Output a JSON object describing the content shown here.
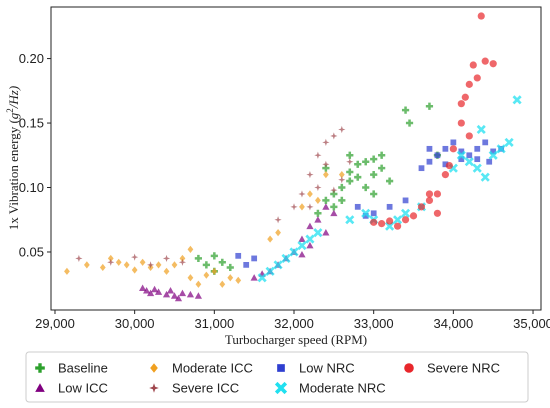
{
  "chart_data": {
    "type": "scatter",
    "title": "",
    "xlabel": "Turbocharger speed (RPM)",
    "ylabel_main": "1x Vibration energy (",
    "ylabel_unit": "g",
    "ylabel_sup": "2",
    "ylabel_tail": "/Hz)",
    "xlim": [
      28950,
      35100
    ],
    "ylim": [
      0.005,
      0.24
    ],
    "xticks": [
      29000,
      30000,
      31000,
      32000,
      33000,
      34000,
      35000
    ],
    "xtick_labels": [
      "29,000",
      "30,000",
      "31,000",
      "32,000",
      "33,000",
      "34,000",
      "35,000"
    ],
    "yticks": [
      0.05,
      0.1,
      0.15,
      0.2
    ],
    "ytick_labels": [
      "0.05",
      "0.10",
      "0.15",
      "0.20"
    ],
    "grid": false,
    "legend_position": "bottom",
    "series": [
      {
        "name": "Baseline",
        "marker": "plus",
        "color": "#2ca02c",
        "points": [
          [
            30800,
            0.045
          ],
          [
            30900,
            0.04
          ],
          [
            31000,
            0.047
          ],
          [
            31100,
            0.042
          ],
          [
            31200,
            0.038
          ],
          [
            31000,
            0.035
          ],
          [
            32300,
            0.08
          ],
          [
            32400,
            0.09
          ],
          [
            32500,
            0.095
          ],
          [
            32500,
            0.085
          ],
          [
            32600,
            0.1
          ],
          [
            32700,
            0.105
          ],
          [
            32700,
            0.112
          ],
          [
            32800,
            0.118
          ],
          [
            32800,
            0.108
          ],
          [
            32900,
            0.12
          ],
          [
            32900,
            0.1
          ],
          [
            33000,
            0.122
          ],
          [
            33000,
            0.11
          ],
          [
            33100,
            0.115
          ],
          [
            33200,
            0.105
          ],
          [
            32600,
            0.09
          ],
          [
            33400,
            0.16
          ],
          [
            33450,
            0.15
          ],
          [
            33700,
            0.163
          ],
          [
            33800,
            0.125
          ],
          [
            32400,
            0.115
          ],
          [
            32700,
            0.125
          ],
          [
            33000,
            0.095
          ],
          [
            33100,
            0.125
          ]
        ]
      },
      {
        "name": "Low ICC",
        "marker": "triangle",
        "color": "#800080",
        "points": [
          [
            30100,
            0.022
          ],
          [
            30150,
            0.02
          ],
          [
            30200,
            0.018
          ],
          [
            30250,
            0.021
          ],
          [
            30300,
            0.019
          ],
          [
            30400,
            0.017
          ],
          [
            30500,
            0.016
          ],
          [
            30600,
            0.018
          ],
          [
            30700,
            0.017
          ],
          [
            30800,
            0.016
          ],
          [
            30450,
            0.02
          ],
          [
            30550,
            0.014
          ],
          [
            31500,
            0.03
          ],
          [
            31600,
            0.033
          ],
          [
            31700,
            0.035
          ],
          [
            31800,
            0.04
          ],
          [
            31900,
            0.045
          ],
          [
            32000,
            0.05
          ],
          [
            32100,
            0.06
          ],
          [
            32200,
            0.07
          ],
          [
            32300,
            0.075
          ],
          [
            32400,
            0.065
          ],
          [
            32500,
            0.08
          ],
          [
            32200,
            0.055
          ],
          [
            32400,
            0.085
          ],
          [
            32100,
            0.048
          ]
        ]
      },
      {
        "name": "Moderate ICC",
        "marker": "diamond",
        "color": "#f0a020",
        "points": [
          [
            29150,
            0.035
          ],
          [
            29400,
            0.04
          ],
          [
            29600,
            0.038
          ],
          [
            29700,
            0.045
          ],
          [
            29800,
            0.042
          ],
          [
            29900,
            0.04
          ],
          [
            30000,
            0.036
          ],
          [
            30100,
            0.042
          ],
          [
            30200,
            0.038
          ],
          [
            30300,
            0.04
          ],
          [
            30400,
            0.035
          ],
          [
            30500,
            0.04
          ],
          [
            30600,
            0.045
          ],
          [
            30700,
            0.03
          ],
          [
            30800,
            0.025
          ],
          [
            30900,
            0.032
          ],
          [
            31000,
            0.035
          ],
          [
            31100,
            0.025
          ],
          [
            31200,
            0.03
          ],
          [
            31300,
            0.028
          ],
          [
            31800,
            0.065
          ],
          [
            31700,
            0.06
          ],
          [
            32100,
            0.085
          ],
          [
            32200,
            0.095
          ],
          [
            32400,
            0.11
          ],
          [
            32300,
            0.09
          ],
          [
            32600,
            0.11
          ],
          [
            30700,
            0.052
          ]
        ]
      },
      {
        "name": "Severe ICC",
        "marker": "star",
        "color": "#a0484e",
        "points": [
          [
            29300,
            0.045
          ],
          [
            29700,
            0.042
          ],
          [
            30000,
            0.046
          ],
          [
            30200,
            0.04
          ],
          [
            30400,
            0.045
          ],
          [
            30600,
            0.042
          ],
          [
            31800,
            0.075
          ],
          [
            32000,
            0.085
          ],
          [
            32100,
            0.095
          ],
          [
            32200,
            0.11
          ],
          [
            32300,
            0.125
          ],
          [
            32400,
            0.135
          ],
          [
            32500,
            0.14
          ],
          [
            32600,
            0.145
          ],
          [
            32700,
            0.12
          ],
          [
            32400,
            0.118
          ],
          [
            32300,
            0.1
          ],
          [
            32500,
            0.098
          ],
          [
            32600,
            0.106
          ],
          [
            32200,
            0.085
          ]
        ]
      },
      {
        "name": "Low NRC",
        "marker": "square",
        "color": "#2f3fd0",
        "points": [
          [
            31300,
            0.047
          ],
          [
            31400,
            0.04
          ],
          [
            31500,
            0.045
          ],
          [
            32800,
            0.085
          ],
          [
            32900,
            0.078
          ],
          [
            33000,
            0.08
          ],
          [
            33200,
            0.085
          ],
          [
            33400,
            0.09
          ],
          [
            33600,
            0.115
          ],
          [
            33700,
            0.12
          ],
          [
            33800,
            0.125
          ],
          [
            33900,
            0.13
          ],
          [
            34000,
            0.135
          ],
          [
            34100,
            0.128
          ],
          [
            34200,
            0.125
          ],
          [
            34300,
            0.13
          ],
          [
            34400,
            0.135
          ],
          [
            34500,
            0.128
          ],
          [
            34600,
            0.13
          ],
          [
            34100,
            0.122
          ],
          [
            33900,
            0.118
          ],
          [
            34300,
            0.122
          ],
          [
            33700,
            0.13
          ],
          [
            34450,
            0.12
          ]
        ]
      },
      {
        "name": "Moderate NRC",
        "marker": "x",
        "color": "#20e0f0",
        "points": [
          [
            31600,
            0.03
          ],
          [
            31700,
            0.035
          ],
          [
            31800,
            0.04
          ],
          [
            31900,
            0.045
          ],
          [
            32000,
            0.05
          ],
          [
            32100,
            0.055
          ],
          [
            32200,
            0.06
          ],
          [
            32300,
            0.065
          ],
          [
            32700,
            0.075
          ],
          [
            32900,
            0.08
          ],
          [
            33000,
            0.075
          ],
          [
            33200,
            0.07
          ],
          [
            33300,
            0.075
          ],
          [
            33400,
            0.08
          ],
          [
            33600,
            0.085
          ],
          [
            34000,
            0.115
          ],
          [
            34200,
            0.12
          ],
          [
            34300,
            0.115
          ],
          [
            34400,
            0.108
          ],
          [
            34500,
            0.125
          ],
          [
            34600,
            0.13
          ],
          [
            34700,
            0.135
          ],
          [
            34800,
            0.168
          ],
          [
            34350,
            0.145
          ],
          [
            34100,
            0.125
          ]
        ]
      },
      {
        "name": "Severe NRC",
        "marker": "circle",
        "color": "#e8262b",
        "points": [
          [
            33000,
            0.073
          ],
          [
            33100,
            0.072
          ],
          [
            33200,
            0.074
          ],
          [
            33300,
            0.07
          ],
          [
            33400,
            0.075
          ],
          [
            33500,
            0.078
          ],
          [
            33600,
            0.085
          ],
          [
            33700,
            0.09
          ],
          [
            33800,
            0.095
          ],
          [
            33900,
            0.11
          ],
          [
            34000,
            0.13
          ],
          [
            34100,
            0.15
          ],
          [
            34150,
            0.17
          ],
          [
            34200,
            0.18
          ],
          [
            34250,
            0.195
          ],
          [
            34300,
            0.185
          ],
          [
            34350,
            0.233
          ],
          [
            34400,
            0.198
          ],
          [
            34500,
            0.196
          ],
          [
            34100,
            0.165
          ],
          [
            33950,
            0.117
          ],
          [
            33800,
            0.08
          ],
          [
            33700,
            0.095
          ],
          [
            34200,
            0.14
          ]
        ]
      }
    ]
  }
}
